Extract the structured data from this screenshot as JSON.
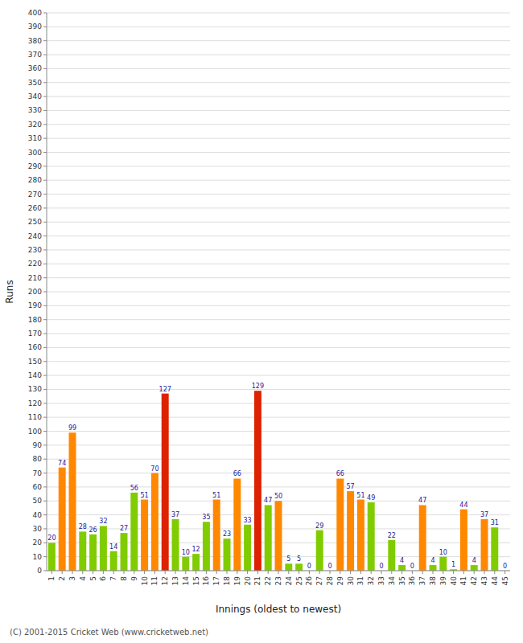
{
  "chart_data": {
    "type": "bar",
    "xlabel": "Innings (oldest to newest)",
    "ylabel": "Runs",
    "annotations": [
      "(C) 2001-2015 Cricket Web (www.cricketweb.net)"
    ],
    "categories": [
      1,
      2,
      3,
      4,
      5,
      6,
      7,
      8,
      9,
      10,
      11,
      12,
      13,
      14,
      15,
      16,
      17,
      18,
      19,
      20,
      21,
      22,
      23,
      24,
      25,
      26,
      27,
      28,
      29,
      30,
      31,
      32,
      33,
      34,
      35,
      36,
      37,
      38,
      39,
      40,
      41,
      42,
      43,
      44,
      45
    ],
    "values": [
      20,
      74,
      99,
      28,
      26,
      32,
      14,
      27,
      56,
      51,
      70,
      127,
      37,
      10,
      12,
      35,
      51,
      23,
      66,
      33,
      129,
      47,
      50,
      5,
      5,
      0,
      29,
      0,
      66,
      57,
      51,
      49,
      0,
      22,
      4,
      0,
      47,
      4,
      10,
      1,
      44,
      4,
      37,
      31,
      0
    ],
    "colors": [
      "#80cc00",
      "#ff8800",
      "#ff8800",
      "#80cc00",
      "#80cc00",
      "#80cc00",
      "#80cc00",
      "#80cc00",
      "#80cc00",
      "#ff8800",
      "#ff8800",
      "#dd2200",
      "#80cc00",
      "#80cc00",
      "#80cc00",
      "#80cc00",
      "#ff8800",
      "#80cc00",
      "#ff8800",
      "#80cc00",
      "#dd2200",
      "#80cc00",
      "#ff8800",
      "#80cc00",
      "#80cc00",
      "#80cc00",
      "#80cc00",
      "#80cc00",
      "#ff8800",
      "#ff8800",
      "#ff8800",
      "#80cc00",
      "#80cc00",
      "#80cc00",
      "#80cc00",
      "#80cc00",
      "#ff8800",
      "#80cc00",
      "#80cc00",
      "#80cc00",
      "#ff8800",
      "#80cc00",
      "#ff8800",
      "#80cc00",
      "#80cc00"
    ],
    "ylim": [
      0,
      400
    ],
    "yticks": [
      0,
      10,
      20,
      30,
      40,
      50,
      60,
      70,
      80,
      90,
      100,
      110,
      120,
      130,
      140,
      150,
      160,
      170,
      180,
      190,
      200,
      210,
      220,
      230,
      240,
      250,
      260,
      270,
      280,
      290,
      300,
      310,
      320,
      330,
      340,
      350,
      360,
      370,
      380,
      390,
      400
    ],
    "grid": true,
    "data_labels": true
  }
}
